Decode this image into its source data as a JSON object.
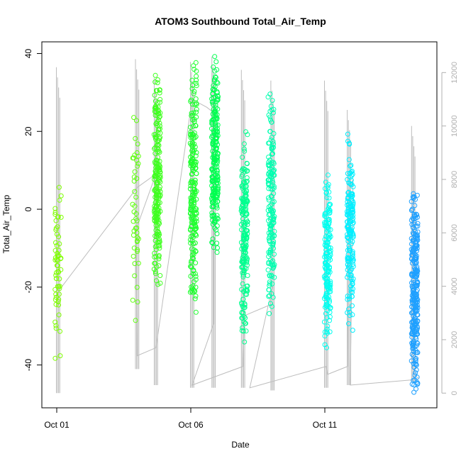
{
  "chart_data": {
    "type": "scatter",
    "title": "ATOM3 Southbound Total_Air_Temp",
    "xlabel": "Date",
    "ylabel": "Total_Air_Temp",
    "x_ticks": [
      {
        "day": 1,
        "label": "Oct 01"
      },
      {
        "day": 6,
        "label": "Oct 06"
      },
      {
        "day": 11,
        "label": "Oct 11"
      }
    ],
    "xlim_days": [
      0.7,
      15.6
    ],
    "ylim": [
      -51,
      43
    ],
    "y_ticks": [
      40,
      20,
      0,
      -20,
      -40
    ],
    "y2_ticks": [
      0,
      2000,
      4000,
      6000,
      8000,
      10000,
      12000
    ],
    "y2lim": [
      -550,
      13150
    ],
    "colors": {
      "line": "#bdbdbd",
      "series_scale": [
        "#7FFF00",
        "#3FFF1F",
        "#00FF3F",
        "#00FF9F",
        "#00FFFF",
        "#1FBFFF",
        "#1F8FFF"
      ]
    },
    "groups": [
      {
        "day": 1.05,
        "y_min": -39.5,
        "y_max": 9,
        "n": 60,
        "color": "#7FFF00"
      },
      {
        "day": 3.95,
        "y_min": -30,
        "y_max": 26,
        "n": 45,
        "color": "#5FFF10"
      },
      {
        "day": 4.75,
        "y_min": -21,
        "y_max": 36,
        "n": 220,
        "color": "#3FFF1F"
      },
      {
        "day": 6.1,
        "y_min": -28.5,
        "y_max": 39.5,
        "n": 220,
        "color": "#1FFF2F"
      },
      {
        "day": 6.9,
        "y_min": -14,
        "y_max": 40,
        "n": 230,
        "color": "#00FF50"
      },
      {
        "day": 8.0,
        "y_min": -36,
        "y_max": 22,
        "n": 190,
        "color": "#00FF8F"
      },
      {
        "day": 9.0,
        "y_min": -29.5,
        "y_max": 32,
        "n": 170,
        "color": "#00FFB0"
      },
      {
        "day": 11.1,
        "y_min": -37,
        "y_max": 10.5,
        "n": 170,
        "color": "#00FFF0"
      },
      {
        "day": 11.95,
        "y_min": -32,
        "y_max": 20,
        "n": 170,
        "color": "#00EFFF"
      },
      {
        "day": 14.35,
        "y_min": -49.5,
        "y_max": 7.5,
        "n": 280,
        "color": "#1FA0FF"
      }
    ],
    "line_spikes": [
      {
        "day": 1.05,
        "lo": 0,
        "hi": 12200
      },
      {
        "day": 4.0,
        "lo": 900,
        "hi": 12500
      },
      {
        "day": 4.7,
        "lo": 300,
        "hi": 11800
      },
      {
        "day": 6.05,
        "lo": 200,
        "hi": 12400
      },
      {
        "day": 6.85,
        "lo": 200,
        "hi": 12600
      },
      {
        "day": 7.95,
        "lo": 200,
        "hi": 12100
      },
      {
        "day": 9.05,
        "lo": 100,
        "hi": 11700
      },
      {
        "day": 11.05,
        "lo": 200,
        "hi": 11700
      },
      {
        "day": 11.9,
        "lo": 300,
        "hi": 10600
      },
      {
        "day": 14.3,
        "lo": 400,
        "hi": 10000
      }
    ],
    "line_path": [
      [
        1.05,
        3800
      ],
      [
        4.0,
        7700
      ],
      [
        4.7,
        8200
      ],
      [
        3.95,
        6100
      ],
      [
        4.0,
        1400
      ],
      [
        4.7,
        1700
      ],
      [
        6.05,
        11000
      ],
      [
        6.6,
        10700
      ],
      [
        6.85,
        10500
      ],
      [
        6.85,
        2600
      ],
      [
        6.05,
        300
      ],
      [
        7.95,
        1000
      ],
      [
        8.0,
        2900
      ],
      [
        8.95,
        3300
      ],
      [
        9.05,
        4000
      ],
      [
        8.2,
        200
      ],
      [
        11.05,
        1000
      ],
      [
        11.1,
        700
      ],
      [
        11.85,
        1000
      ],
      [
        11.9,
        7600
      ],
      [
        12.05,
        8000
      ],
      [
        11.95,
        300
      ],
      [
        14.3,
        500
      ],
      [
        14.5,
        600
      ]
    ]
  }
}
